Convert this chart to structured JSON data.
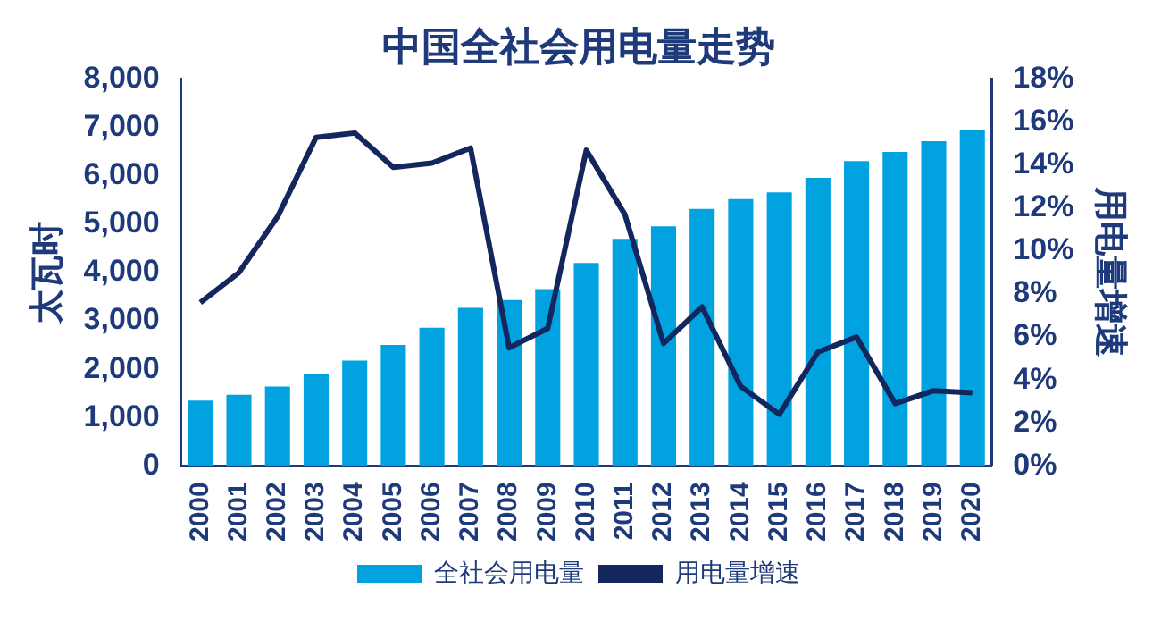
{
  "chart_data": {
    "type": "bar",
    "title": "中国全社会用电量走势",
    "ylabel": "太瓦时",
    "y2label": "用电量增速",
    "categories": [
      "2000",
      "2001",
      "2002",
      "2003",
      "2004",
      "2005",
      "2006",
      "2007",
      "2008",
      "2009",
      "2010",
      "2011",
      "2012",
      "2013",
      "2014",
      "2015",
      "2016",
      "2017",
      "2018",
      "2019",
      "2020"
    ],
    "series": [
      {
        "name": "全社会用电量",
        "color": "#00a3e0",
        "values": [
          1350,
          1470,
          1640,
          1900,
          2180,
          2500,
          2860,
          3270,
          3430,
          3660,
          4200,
          4700,
          4960,
          5320,
          5520,
          5660,
          5960,
          6310,
          6500,
          6720,
          6950
        ]
      },
      {
        "name": "用电量增速",
        "type": "line",
        "axis": "y2",
        "color": "#13275e",
        "values": [
          7.6,
          9.0,
          11.6,
          15.3,
          15.5,
          13.9,
          14.1,
          14.8,
          5.5,
          6.4,
          14.7,
          11.7,
          5.7,
          7.4,
          3.7,
          2.4,
          5.3,
          6.0,
          2.9,
          3.5,
          3.4
        ]
      }
    ],
    "ylim": [
      0,
      8000
    ],
    "yticks": [
      {
        "value": 0,
        "label": "0"
      },
      {
        "value": 1000,
        "label": "1,000"
      },
      {
        "value": 2000,
        "label": "2,000"
      },
      {
        "value": 3000,
        "label": "3,000"
      },
      {
        "value": 4000,
        "label": "4,000"
      },
      {
        "value": 5000,
        "label": "5,000"
      },
      {
        "value": 6000,
        "label": "6,000"
      },
      {
        "value": 7000,
        "label": "7,000"
      },
      {
        "value": 8000,
        "label": "8,000"
      }
    ],
    "y2lim": [
      0,
      18
    ],
    "y2ticks": [
      {
        "value": 0,
        "label": "0%"
      },
      {
        "value": 2,
        "label": "2%"
      },
      {
        "value": 4,
        "label": "4%"
      },
      {
        "value": 6,
        "label": "6%"
      },
      {
        "value": 8,
        "label": "8%"
      },
      {
        "value": 10,
        "label": "10%"
      },
      {
        "value": 12,
        "label": "12%"
      },
      {
        "value": 14,
        "label": "14%"
      },
      {
        "value": 16,
        "label": "16%"
      },
      {
        "value": 18,
        "label": "18%"
      }
    ],
    "grid": false,
    "legend": "bottom",
    "marker": "none",
    "line_style": "solid"
  }
}
